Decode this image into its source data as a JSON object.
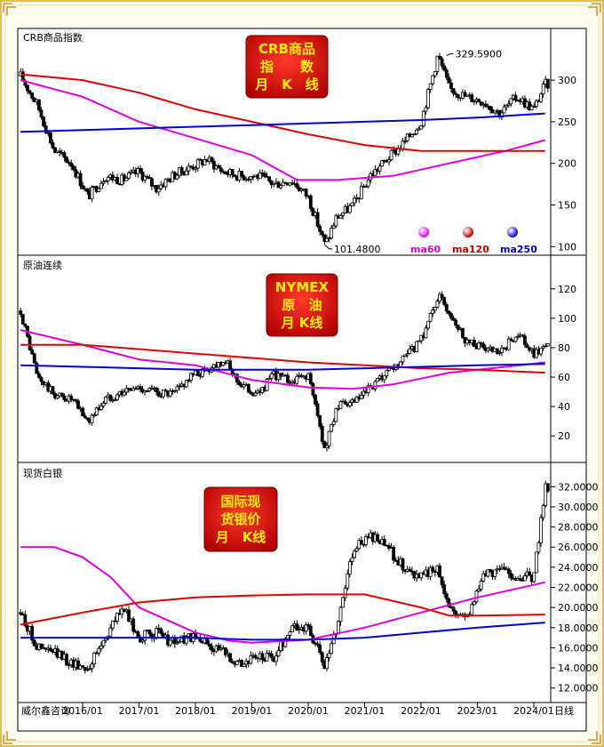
{
  "footer": {
    "source": "威尔鑫咨询",
    "period": "日线"
  },
  "colors": {
    "ma60": "#e100e1",
    "ma120": "#e00000",
    "ma250": "#0000e0",
    "candle": "#000000",
    "frame": "#e8c060"
  },
  "chart_data": [
    {
      "type": "candlestick",
      "panel_label": "CRB商品指数",
      "title_box": [
        "CRB商品",
        "指　　数",
        "月　K　线"
      ],
      "ylim": [
        95,
        345
      ],
      "yticks": [
        "300",
        "250",
        "200",
        "150",
        "100"
      ],
      "annotations": [
        {
          "text": "329.5900",
          "x": 2022.45,
          "y": 329.59
        },
        {
          "text": "101.4800",
          "x": 2020.3,
          "y": 101.48
        }
      ],
      "legend": [
        "ma60",
        "ma120",
        "ma250"
      ],
      "series": [
        {
          "name": "close",
          "x": [
            2014.9,
            2015.2,
            2015.5,
            2015.8,
            2016.1,
            2016.4,
            2016.7,
            2017.0,
            2017.3,
            2017.6,
            2017.9,
            2018.2,
            2018.5,
            2018.8,
            2019.1,
            2019.4,
            2019.7,
            2020.0,
            2020.3,
            2020.5,
            2020.8,
            2021.1,
            2021.4,
            2021.7,
            2022.0,
            2022.3,
            2022.5,
            2022.8,
            2023.1,
            2023.4,
            2023.7,
            2024.0,
            2024.2
          ],
          "values": [
            305,
            270,
            215,
            200,
            160,
            185,
            180,
            190,
            170,
            185,
            195,
            205,
            190,
            185,
            185,
            175,
            180,
            160,
            101.5,
            135,
            150,
            185,
            205,
            225,
            250,
            330,
            290,
            280,
            275,
            260,
            280,
            265,
            295
          ]
        },
        {
          "name": "ma60",
          "x": [
            2014.9,
            2016.0,
            2017.0,
            2018.0,
            2019.0,
            2019.8,
            2020.5,
            2021.5,
            2022.5,
            2023.5,
            2024.2
          ],
          "values": [
            300,
            280,
            250,
            230,
            210,
            180,
            180,
            185,
            200,
            215,
            228
          ]
        },
        {
          "name": "ma120",
          "x": [
            2014.9,
            2016.0,
            2017.0,
            2018.0,
            2019.0,
            2020.0,
            2021.0,
            2022.0,
            2023.0,
            2024.2
          ],
          "values": [
            307,
            300,
            285,
            265,
            250,
            235,
            222,
            215,
            215,
            215
          ]
        },
        {
          "name": "ma250",
          "x": [
            2014.9,
            2016.0,
            2017.0,
            2018.0,
            2019.0,
            2020.0,
            2021.0,
            2022.0,
            2023.0,
            2024.2
          ],
          "values": [
            238,
            240,
            242,
            244,
            246,
            248,
            250,
            252,
            255,
            260
          ]
        }
      ]
    },
    {
      "type": "candlestick",
      "panel_label": "原油连续",
      "title_box": [
        "NYMEX",
        "原　油",
        "月 K线"
      ],
      "ylim": [
        5,
        135
      ],
      "yticks": [
        "120",
        "100",
        "80",
        "60",
        "40",
        "20"
      ],
      "series": [
        {
          "name": "close",
          "x": [
            2014.9,
            2015.2,
            2015.5,
            2015.8,
            2016.1,
            2016.4,
            2016.7,
            2017.0,
            2017.3,
            2017.6,
            2017.9,
            2018.2,
            2018.5,
            2018.8,
            2019.1,
            2019.4,
            2019.7,
            2020.0,
            2020.3,
            2020.5,
            2020.8,
            2021.1,
            2021.4,
            2021.7,
            2022.0,
            2022.3,
            2022.5,
            2022.8,
            2023.1,
            2023.4,
            2023.7,
            2024.0,
            2024.2
          ],
          "values": [
            105,
            60,
            48,
            45,
            30,
            45,
            50,
            53,
            50,
            48,
            60,
            65,
            72,
            55,
            48,
            62,
            57,
            62,
            10,
            40,
            42,
            52,
            62,
            72,
            85,
            115,
            105,
            85,
            80,
            75,
            90,
            75,
            82
          ]
        },
        {
          "name": "ma60",
          "x": [
            2014.9,
            2016.0,
            2017.0,
            2018.0,
            2019.0,
            2020.0,
            2020.8,
            2021.5,
            2022.5,
            2023.5,
            2024.2
          ],
          "values": [
            92,
            82,
            72,
            68,
            58,
            53,
            52,
            55,
            63,
            67,
            70
          ]
        },
        {
          "name": "ma120",
          "x": [
            2014.9,
            2016.0,
            2017.0,
            2018.0,
            2019.0,
            2020.0,
            2021.0,
            2022.0,
            2023.0,
            2024.2
          ],
          "values": [
            82,
            82,
            79,
            76,
            73,
            70,
            68,
            66,
            65,
            63
          ]
        },
        {
          "name": "ma250",
          "x": [
            2014.9,
            2016.0,
            2017.0,
            2018.0,
            2019.0,
            2020.0,
            2021.0,
            2022.0,
            2023.0,
            2024.2
          ],
          "values": [
            68,
            67,
            66,
            65,
            65,
            65,
            66,
            67,
            68,
            69
          ]
        }
      ]
    },
    {
      "type": "candlestick",
      "panel_label": "现货白银",
      "title_box": [
        "国际现",
        "货银价",
        "月　K线"
      ],
      "ylim": [
        11,
        33
      ],
      "yticks": [
        "32.0000",
        "30.0000",
        "28.0000",
        "26.0000",
        "24.0000",
        "22.0000",
        "20.0000",
        "18.0000",
        "16.0000",
        "14.0000",
        "12.0000"
      ],
      "xticks": [
        "2016/01",
        "2017/01",
        "2018/01",
        "2019/01",
        "2020/01",
        "2021/01",
        "2022/01",
        "2023/01",
        "2024/01"
      ],
      "series": [
        {
          "name": "close",
          "x": [
            2014.9,
            2015.2,
            2015.5,
            2015.8,
            2016.1,
            2016.4,
            2016.7,
            2017.0,
            2017.3,
            2017.6,
            2017.9,
            2018.2,
            2018.5,
            2018.8,
            2019.1,
            2019.4,
            2019.7,
            2020.0,
            2020.3,
            2020.5,
            2020.8,
            2021.1,
            2021.4,
            2021.7,
            2022.0,
            2022.3,
            2022.5,
            2022.8,
            2023.1,
            2023.4,
            2023.7,
            2024.0,
            2024.2
          ],
          "values": [
            19.5,
            16,
            15.5,
            14.5,
            14,
            17,
            20,
            17,
            17.5,
            16.5,
            17,
            16.5,
            15.5,
            14.5,
            15,
            15,
            18,
            18,
            14,
            18,
            26,
            27,
            26,
            24,
            23,
            24,
            20,
            19,
            23,
            24,
            23,
            23,
            32
          ]
        },
        {
          "name": "ma60",
          "x": [
            2014.9,
            2015.5,
            2016.0,
            2016.5,
            2017.0,
            2018.0,
            2018.6,
            2019.0,
            2020.0,
            2021.0,
            2022.0,
            2023.0,
            2024.2
          ],
          "values": [
            26,
            26,
            25,
            23,
            20,
            17.5,
            16.7,
            16.5,
            16.8,
            18,
            19.5,
            21,
            22.5
          ]
        },
        {
          "name": "ma120",
          "x": [
            2014.9,
            2016.0,
            2017.0,
            2018.0,
            2019.0,
            2020.0,
            2021.0,
            2022.0,
            2022.5,
            2023.0,
            2024.2
          ],
          "values": [
            18.3,
            19.5,
            20.5,
            21,
            21.2,
            21.3,
            21.3,
            20,
            19.2,
            19.2,
            19.3
          ]
        },
        {
          "name": "ma250",
          "x": [
            2014.9,
            2016.0,
            2017.0,
            2018.0,
            2019.0,
            2020.0,
            2021.0,
            2022.0,
            2023.0,
            2024.2
          ],
          "values": [
            17,
            17,
            17,
            17,
            16.8,
            16.8,
            17,
            17.5,
            18,
            18.5
          ]
        }
      ]
    }
  ]
}
